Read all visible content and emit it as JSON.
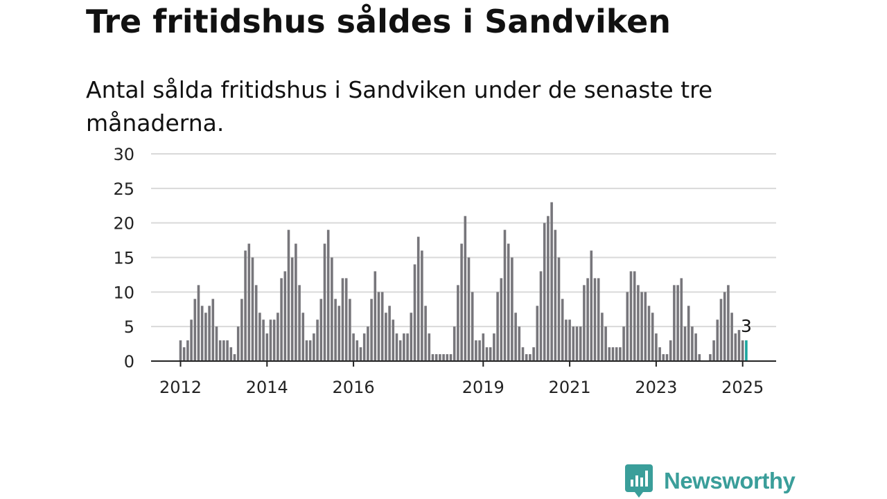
{
  "colors": {
    "bar": "#77767b",
    "highlight": "#1ba59e",
    "grid": "#d9d9d9",
    "axis": "#222222",
    "brand": "#3a9e9a"
  },
  "brand": {
    "name": "Newsworthy",
    "icon": "chart-bubble-icon"
  },
  "chart_data": {
    "type": "bar",
    "title": "Tre fritidshus såldes i Sandviken",
    "subtitle": "Antal sålda fritidshus i Sandviken under de senaste tre månaderna.",
    "xlabel": "",
    "ylabel": "",
    "ylim": [
      0,
      30
    ],
    "yticks": [
      0,
      5,
      10,
      15,
      20,
      25,
      30
    ],
    "grid": true,
    "legend": "none",
    "start": "2012-01",
    "xticks": [
      {
        "label": "2012",
        "x": "2012-01"
      },
      {
        "label": "2014",
        "x": "2014-01"
      },
      {
        "label": "2016",
        "x": "2016-01"
      },
      {
        "label": "2019",
        "x": "2019-01"
      },
      {
        "label": "2021",
        "x": "2021-01"
      },
      {
        "label": "2023",
        "x": "2023-01"
      },
      {
        "label": "2025",
        "x": "2025-01"
      }
    ],
    "values": [
      3,
      2,
      3,
      6,
      9,
      11,
      8,
      7,
      8,
      9,
      5,
      3,
      3,
      3,
      2,
      1,
      5,
      9,
      16,
      17,
      15,
      11,
      7,
      6,
      4,
      6,
      6,
      7,
      12,
      13,
      19,
      15,
      17,
      11,
      7,
      3,
      3,
      4,
      6,
      9,
      17,
      19,
      15,
      9,
      8,
      12,
      12,
      9,
      4,
      3,
      2,
      4,
      5,
      9,
      13,
      10,
      10,
      7,
      8,
      6,
      4,
      3,
      4,
      4,
      7,
      14,
      18,
      16,
      8,
      4,
      1,
      1,
      1,
      1,
      1,
      1,
      5,
      11,
      17,
      21,
      15,
      10,
      3,
      3,
      4,
      2,
      2,
      4,
      10,
      12,
      19,
      17,
      15,
      7,
      5,
      2,
      1,
      1,
      2,
      8,
      13,
      20,
      21,
      23,
      19,
      15,
      9,
      6,
      6,
      5,
      5,
      5,
      11,
      12,
      16,
      12,
      12,
      7,
      5,
      2,
      2,
      2,
      2,
      5,
      10,
      13,
      13,
      11,
      10,
      10,
      8,
      7,
      4,
      2,
      1,
      1,
      3,
      11,
      11,
      12,
      5,
      8,
      5,
      4,
      1,
      0,
      0,
      1,
      3,
      6,
      9,
      10,
      11,
      7,
      4,
      4.5,
      3,
      3
    ],
    "annotation": {
      "label": "3",
      "index": 157
    }
  }
}
